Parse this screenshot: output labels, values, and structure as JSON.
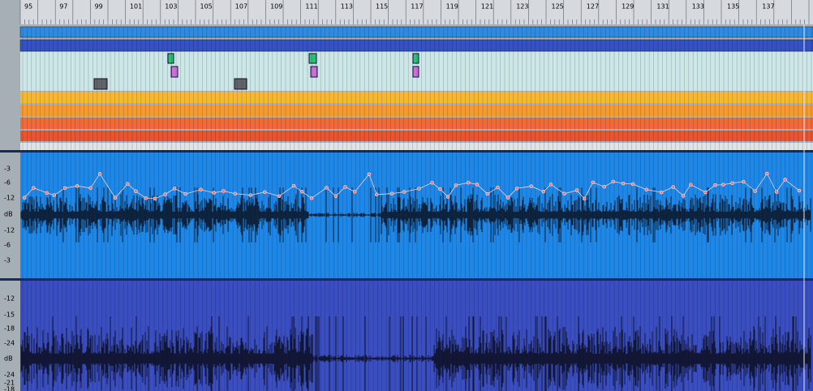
{
  "ruler": {
    "labels": [
      "95",
      "97",
      "99",
      "101",
      "103",
      "105",
      "107",
      "109",
      "111",
      "113",
      "115",
      "117",
      "119",
      "121",
      "123",
      "125",
      "127",
      "129",
      "131",
      "133",
      "135",
      "137"
    ]
  },
  "tracks": [
    {
      "scale": [
        "-3",
        "-6",
        "-12",
        "dB",
        "-12",
        "-6",
        "-3"
      ]
    },
    {
      "scale": [
        "-12",
        "-15",
        "-18",
        "-24",
        "dB",
        "-24",
        "-21",
        "-18"
      ]
    }
  ]
}
